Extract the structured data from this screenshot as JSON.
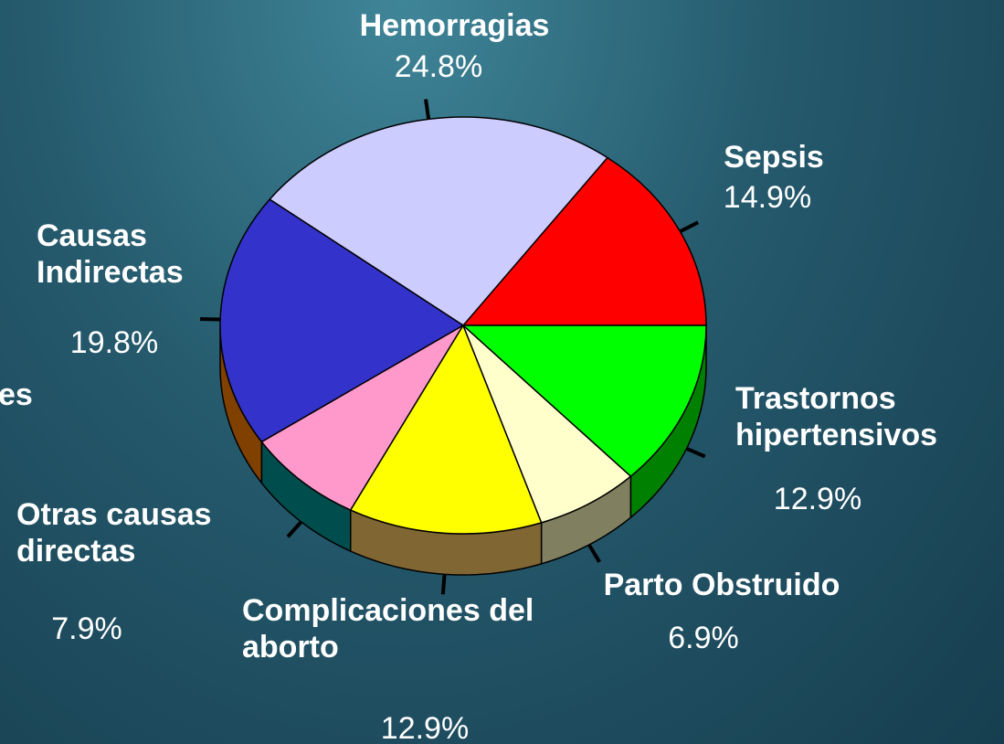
{
  "chart_data": {
    "type": "pie",
    "categories": [
      "Sepsis",
      "Hemorragias",
      "Causas Indirectas",
      "Otras causas directas",
      "Complicaciones del aborto",
      "Parto Obstruido",
      "Trastornos hipertensivos"
    ],
    "values": [
      14.9,
      24.8,
      19.8,
      7.9,
      12.9,
      6.9,
      12.9
    ],
    "value_labels": [
      "14.9%",
      "24.8%",
      "19.8%",
      "7.9%",
      "12.9%",
      "6.9%",
      "12.9%"
    ],
    "colors": [
      "#ff0000",
      "#ccccff",
      "#3333cc",
      "#ff99cc",
      "#ffff00",
      "#ffffcc",
      "#00ff00"
    ],
    "side_colors": [
      "#800000",
      "#666680",
      "#804000",
      "#004d4d",
      "#806633",
      "#808060",
      "#008000"
    ],
    "annotations": [
      "es"
    ]
  }
}
